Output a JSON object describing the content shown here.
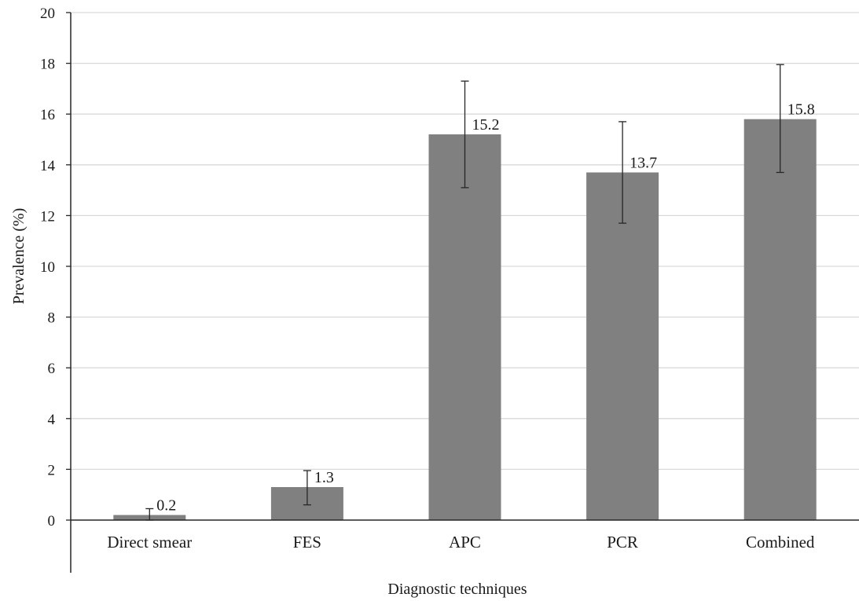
{
  "chart_data": {
    "type": "bar",
    "title": "",
    "xlabel": "Diagnostic techniques",
    "ylabel": "Prevalence (%)",
    "categories": [
      "Direct smear",
      "FES",
      "APC",
      "PCR",
      "Combined"
    ],
    "values": [
      0.2,
      1.3,
      15.2,
      13.7,
      15.8
    ],
    "data_labels": [
      "0.2",
      "1.3",
      "15.2",
      "13.7",
      "15.8"
    ],
    "error_bars": {
      "lower": [
        0.0,
        0.6,
        13.1,
        11.7,
        13.7
      ],
      "upper": [
        0.45,
        1.95,
        17.3,
        15.7,
        17.95
      ]
    },
    "ylim": [
      0,
      20
    ],
    "yticks": [
      "0",
      "2",
      "4",
      "6",
      "8",
      "10",
      "12",
      "14",
      "16",
      "18",
      "20"
    ],
    "grid": "horizontal",
    "legend": "none",
    "colors": {
      "bar": "#808080",
      "grid": "#d9d9d9",
      "axis": "#262626",
      "error_bar": "#262626"
    }
  }
}
